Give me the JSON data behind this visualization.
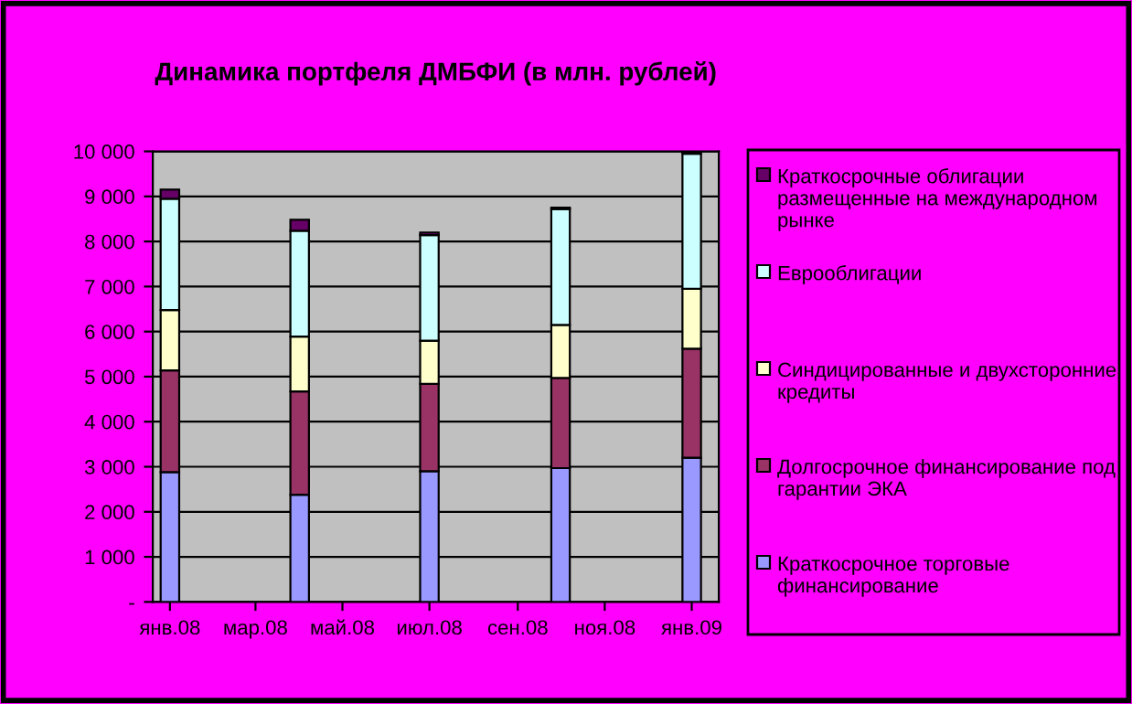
{
  "chart_data": {
    "type": "bar",
    "title": "Динамика портфеля ДМБФИ (в млн. рублей)",
    "x": [
      "2008-01",
      "2008-04",
      "2008-07",
      "2008-10",
      "2009-01"
    ],
    "stacked": true,
    "series": [
      {
        "name": "Краткосрочное торговые финансирование",
        "color": "#9999ff",
        "values": [
          2880,
          2380,
          2900,
          2970,
          3200
        ]
      },
      {
        "name": "Долгосрочное финансирование под гарантии ЭКА",
        "color": "#993366",
        "values": [
          2260,
          2290,
          1940,
          2000,
          2420
        ]
      },
      {
        "name": "Синдицированные и двухсторонние кредиты",
        "color": "#ffffcc",
        "values": [
          1340,
          1220,
          960,
          1180,
          1330
        ]
      },
      {
        "name": "Еврооблигации",
        "color": "#ccffff",
        "values": [
          2470,
          2350,
          2340,
          2570,
          3000
        ]
      },
      {
        "name": "Краткосрочные облигации размещенные на международном рынке",
        "color": "#660066",
        "values": [
          200,
          240,
          60,
          30,
          40
        ]
      }
    ],
    "xlim": [
      "2007-12-20",
      "2009-01-20"
    ],
    "xticks": [
      {
        "value": "2008-01",
        "label": "янв.08"
      },
      {
        "value": "2008-03",
        "label": "мар.08"
      },
      {
        "value": "2008-05",
        "label": "май.08"
      },
      {
        "value": "2008-07",
        "label": "июл.08"
      },
      {
        "value": "2008-09",
        "label": "сен.08"
      },
      {
        "value": "2008-11",
        "label": "ноя.08"
      },
      {
        "value": "2009-01",
        "label": "янв.09"
      }
    ],
    "ylim": [
      0,
      10000
    ],
    "yticks": [
      {
        "value": 0,
        "label": "-"
      },
      {
        "value": 1000,
        "label": "1 000"
      },
      {
        "value": 2000,
        "label": "2 000"
      },
      {
        "value": 3000,
        "label": "3 000"
      },
      {
        "value": 4000,
        "label": "4 000"
      },
      {
        "value": 5000,
        "label": "5 000"
      },
      {
        "value": 6000,
        "label": "6 000"
      },
      {
        "value": 7000,
        "label": "7 000"
      },
      {
        "value": 8000,
        "label": "8 000"
      },
      {
        "value": 9000,
        "label": "9 000"
      },
      {
        "value": 10000,
        "label": "10 000"
      }
    ],
    "grid": "y",
    "legend": "right"
  }
}
